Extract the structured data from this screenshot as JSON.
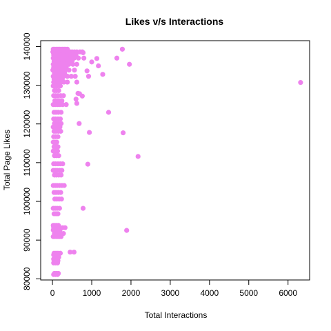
{
  "chart_data": {
    "type": "scatter",
    "title": "Likes v/s Interactions",
    "xlabel": "Total Interactions",
    "ylabel": "Total Page Likes",
    "xlim": [
      -300,
      6550
    ],
    "ylim": [
      79700,
      141500
    ],
    "x_ticks": [
      0,
      1000,
      2000,
      3000,
      4000,
      5000,
      6000
    ],
    "x_tick_labels": [
      "0",
      "1000",
      "2000",
      "3000",
      "4000",
      "5000",
      "6000"
    ],
    "y_ticks": [
      80000,
      90000,
      100000,
      110000,
      120000,
      130000,
      140000
    ],
    "y_tick_labels": [
      "80000",
      "90000",
      "100000",
      "110000",
      "120000",
      "130000",
      "140000"
    ],
    "point_color": "#EE82EE",
    "grid": false,
    "legend": "none",
    "series": [
      {
        "x": [
          20,
          60,
          100,
          140,
          180,
          220,
          260,
          300,
          340,
          380,
          10,
          50,
          90,
          130,
          170,
          210,
          250,
          290,
          330,
          370,
          410,
          450,
          500,
          560,
          620,
          700,
          760,
          30,
          80,
          130,
          180,
          230,
          280,
          330,
          390,
          450,
          520,
          600,
          20,
          70,
          120,
          170,
          220,
          270,
          320,
          380,
          460,
          550,
          660,
          800,
          40,
          90,
          150,
          210,
          270,
          330,
          410,
          500,
          20,
          60,
          100,
          150,
          200,
          260,
          330,
          420,
          520,
          620,
          30,
          80,
          140,
          200,
          270,
          350,
          10,
          60,
          110,
          170,
          240,
          320,
          420,
          560,
          50,
          100,
          160,
          230,
          310,
          20,
          70,
          130,
          200,
          280,
          380,
          480,
          580,
          40,
          100,
          170,
          250,
          30,
          80,
          140,
          210,
          290,
          380,
          20,
          70,
          130,
          200,
          50,
          100,
          160,
          30,
          80,
          140,
          210,
          280,
          60,
          110,
          170,
          240,
          20,
          70,
          130,
          190,
          260,
          350,
          40,
          90,
          150,
          220,
          30,
          80,
          140,
          200,
          50,
          100,
          160,
          220,
          20,
          70,
          130,
          190,
          40,
          90,
          150,
          210,
          30,
          80,
          140,
          20,
          60,
          110,
          40,
          90,
          140,
          20,
          70,
          130,
          50,
          100,
          160,
          30,
          80,
          140,
          200,
          260,
          20,
          70,
          120,
          180,
          240,
          50,
          100,
          160,
          220,
          20,
          70,
          120,
          180,
          240,
          300,
          40,
          90,
          150,
          210,
          60,
          110,
          170,
          230,
          20,
          70,
          120,
          180,
          40,
          90,
          140,
          20,
          60,
          100,
          150,
          30,
          80,
          140,
          200,
          260,
          320,
          20,
          70,
          130,
          190,
          50,
          100,
          160,
          220,
          280,
          20,
          60,
          100,
          140,
          180,
          220,
          40,
          90,
          140,
          200,
          30,
          80,
          130,
          60,
          110,
          160,
          30,
          80,
          130,
          40,
          90,
          140,
          30,
          80,
          130,
          50,
          100,
          150,
          30,
          80,
          130,
          1780,
          1640,
          1130,
          1280,
          1960,
          1000,
          880,
          1170,
          780,
          920,
          620,
          650,
          600,
          760,
          690,
          620,
          1430,
          680,
          1800,
          940,
          2180,
          900,
          780,
          1890,
          550,
          450,
          6320
        ],
        "y": [
          139300,
          139300,
          139300,
          139300,
          139300,
          139300,
          139300,
          139300,
          139300,
          139300,
          138600,
          138600,
          138600,
          138600,
          138600,
          138600,
          138600,
          138600,
          138600,
          138600,
          138600,
          138600,
          138600,
          138600,
          138600,
          138600,
          138600,
          137800,
          137800,
          137800,
          137800,
          137800,
          137800,
          137800,
          137800,
          137800,
          137800,
          137800,
          137000,
          137000,
          137000,
          137000,
          137000,
          137000,
          137000,
          137000,
          137000,
          137000,
          137000,
          137000,
          136200,
          136200,
          136200,
          136200,
          136200,
          136200,
          136200,
          136200,
          135400,
          135400,
          135400,
          135400,
          135400,
          135400,
          135400,
          135400,
          135400,
          135400,
          134600,
          134600,
          134600,
          134600,
          134600,
          134600,
          133900,
          133900,
          133900,
          133900,
          133900,
          133900,
          133900,
          133900,
          133100,
          133100,
          133100,
          133100,
          133100,
          132300,
          132300,
          132300,
          132300,
          132300,
          132300,
          132300,
          132300,
          131600,
          131600,
          131600,
          131600,
          130800,
          130800,
          130800,
          130800,
          130800,
          130800,
          129800,
          129800,
          129800,
          129800,
          128600,
          128600,
          128600,
          127300,
          127300,
          127300,
          127300,
          127300,
          126000,
          126000,
          126000,
          126000,
          125000,
          125000,
          125000,
          125000,
          125000,
          125000,
          123000,
          123000,
          123000,
          123000,
          121300,
          121300,
          121300,
          121300,
          120100,
          120100,
          120100,
          120100,
          119200,
          119200,
          119200,
          119200,
          118100,
          118100,
          118100,
          118100,
          116700,
          116700,
          116700,
          115300,
          115300,
          115300,
          114100,
          114100,
          114100,
          113000,
          113000,
          113000,
          111800,
          111800,
          111800,
          109700,
          109700,
          109700,
          109700,
          109700,
          108000,
          108000,
          108000,
          108000,
          108000,
          106800,
          106800,
          106800,
          106800,
          104100,
          104100,
          104100,
          104100,
          104100,
          104100,
          102300,
          102300,
          102300,
          102300,
          100600,
          100600,
          100600,
          100600,
          98200,
          98200,
          98200,
          98200,
          96800,
          96800,
          96800,
          93800,
          93800,
          93800,
          93800,
          93200,
          93200,
          93200,
          93200,
          93200,
          93200,
          92600,
          92600,
          92600,
          92600,
          91700,
          91700,
          91700,
          91700,
          91700,
          90900,
          90900,
          90900,
          90900,
          90900,
          90900,
          86600,
          86600,
          86600,
          86600,
          86200,
          86200,
          86200,
          85600,
          85600,
          85600,
          85100,
          85100,
          85100,
          84700,
          84700,
          84700,
          84100,
          84100,
          84100,
          81400,
          81400,
          81400,
          81100,
          81100,
          81100,
          139300,
          137000,
          136900,
          132800,
          135400,
          136000,
          133700,
          135000,
          138400,
          132300,
          130800,
          127900,
          126400,
          127200,
          127800,
          125300,
          123000,
          120100,
          117700,
          117800,
          111600,
          109600,
          98200,
          92500,
          86900,
          86900,
          130700
        ]
      }
    ]
  }
}
